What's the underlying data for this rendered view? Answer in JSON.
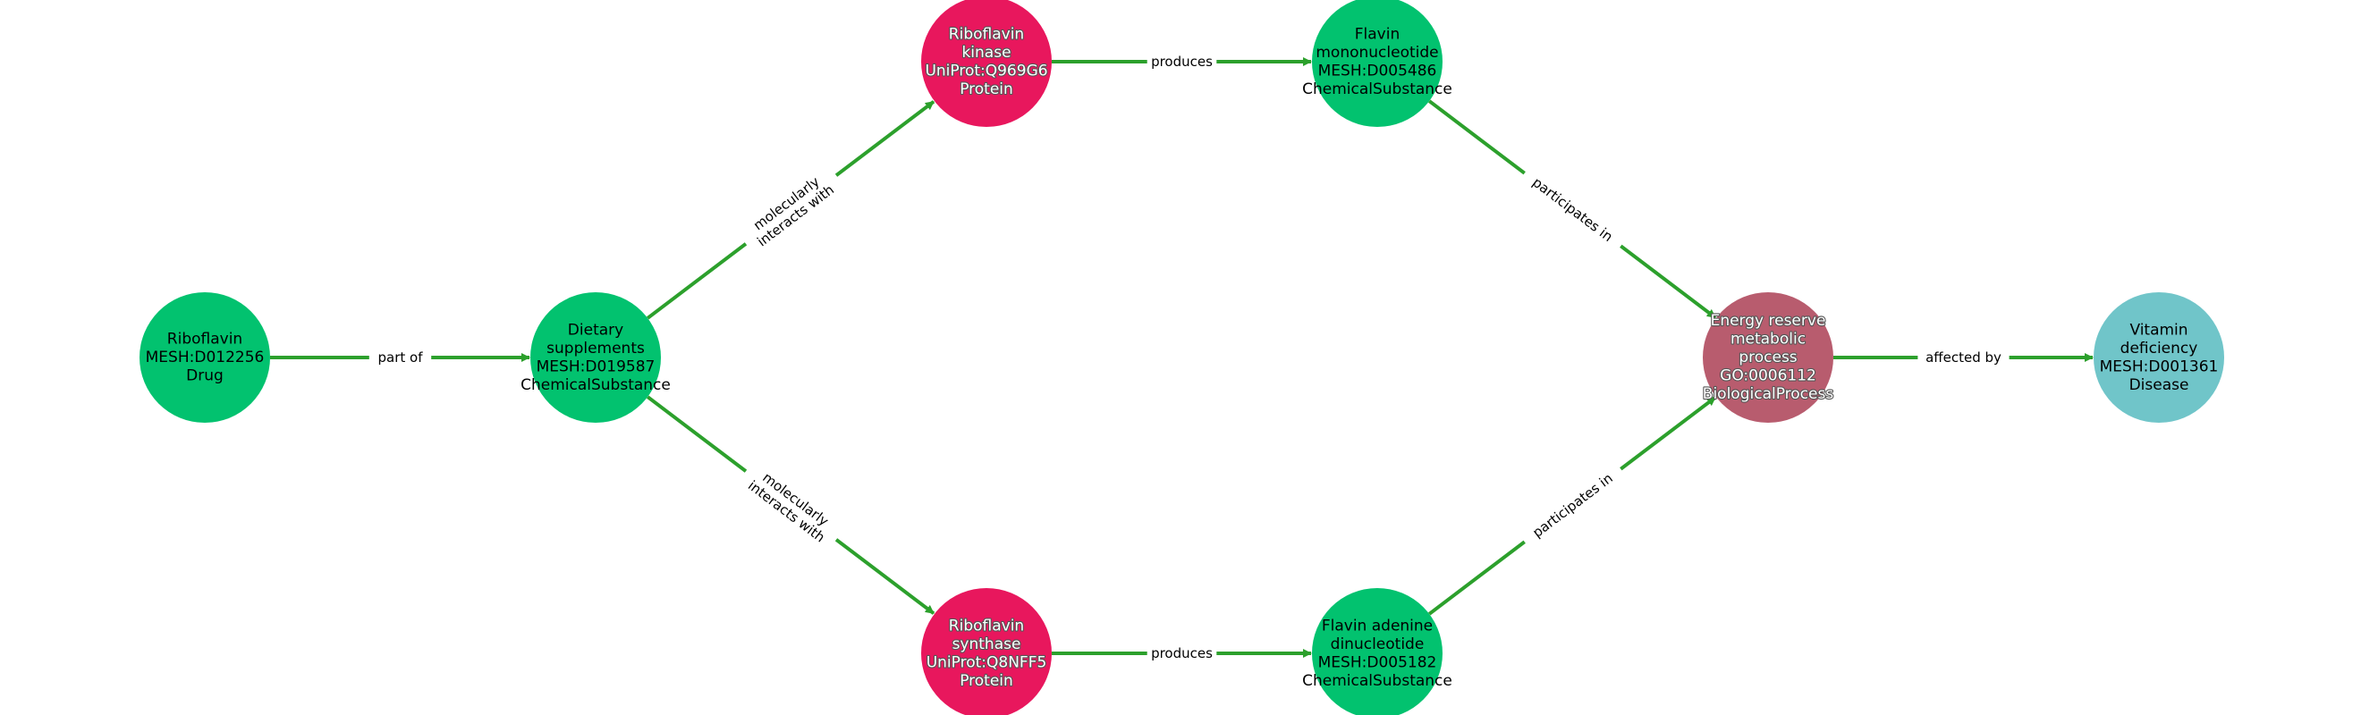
{
  "colors": {
    "edge": "#2ca02c",
    "drug": "#02c26f",
    "chemical": "#02c26f",
    "protein": "#e8175d",
    "process": "#b85c6e",
    "disease": "#70c5c9"
  },
  "nodes": [
    {
      "id": "riboflavin",
      "lines": [
        "Riboflavin",
        "MESH:D012256",
        "Drug"
      ],
      "kind": "drug",
      "text_style": "dark"
    },
    {
      "id": "dietary-supplements",
      "lines": [
        "Dietary",
        "supplements",
        "MESH:D019587",
        "ChemicalSubstance"
      ],
      "kind": "chemical",
      "text_style": "dark"
    },
    {
      "id": "riboflavin-kinase",
      "lines": [
        "Riboflavin",
        "kinase",
        "UniProt:Q969G6",
        "Protein"
      ],
      "kind": "protein",
      "text_style": "light"
    },
    {
      "id": "riboflavin-synthase",
      "lines": [
        "Riboflavin",
        "synthase",
        "UniProt:Q8NFF5",
        "Protein"
      ],
      "kind": "protein",
      "text_style": "light"
    },
    {
      "id": "flavin-mononucleotide",
      "lines": [
        "Flavin",
        "mononucleotide",
        "MESH:D005486",
        "ChemicalSubstance"
      ],
      "kind": "chemical",
      "text_style": "dark"
    },
    {
      "id": "flavin-adenine-dinucleotide",
      "lines": [
        "Flavin adenine",
        "dinucleotide",
        "MESH:D005182",
        "ChemicalSubstance"
      ],
      "kind": "chemical",
      "text_style": "dark"
    },
    {
      "id": "energy-reserve-process",
      "lines": [
        "Energy reserve",
        "metabolic",
        "process",
        "GO:0006112",
        "BiologicalProcess"
      ],
      "kind": "process",
      "text_style": "light"
    },
    {
      "id": "vitamin-deficiency",
      "lines": [
        "Vitamin",
        "deficiency",
        "MESH:D001361",
        "Disease"
      ],
      "kind": "disease",
      "text_style": "dark"
    }
  ],
  "edges": [
    {
      "source": "riboflavin",
      "target": "dietary-supplements",
      "label": [
        "part of"
      ]
    },
    {
      "source": "dietary-supplements",
      "target": "riboflavin-kinase",
      "label": [
        "molecularly",
        "interacts with"
      ]
    },
    {
      "source": "dietary-supplements",
      "target": "riboflavin-synthase",
      "label": [
        "molecularly",
        "interacts with"
      ]
    },
    {
      "source": "riboflavin-kinase",
      "target": "flavin-mononucleotide",
      "label": [
        "produces"
      ]
    },
    {
      "source": "riboflavin-synthase",
      "target": "flavin-adenine-dinucleotide",
      "label": [
        "produces"
      ]
    },
    {
      "source": "flavin-mononucleotide",
      "target": "energy-reserve-process",
      "label": [
        "participates in"
      ]
    },
    {
      "source": "flavin-adenine-dinucleotide",
      "target": "energy-reserve-process",
      "label": [
        "participates in"
      ]
    },
    {
      "source": "energy-reserve-process",
      "target": "vitamin-deficiency",
      "label": [
        "affected by"
      ]
    }
  ]
}
